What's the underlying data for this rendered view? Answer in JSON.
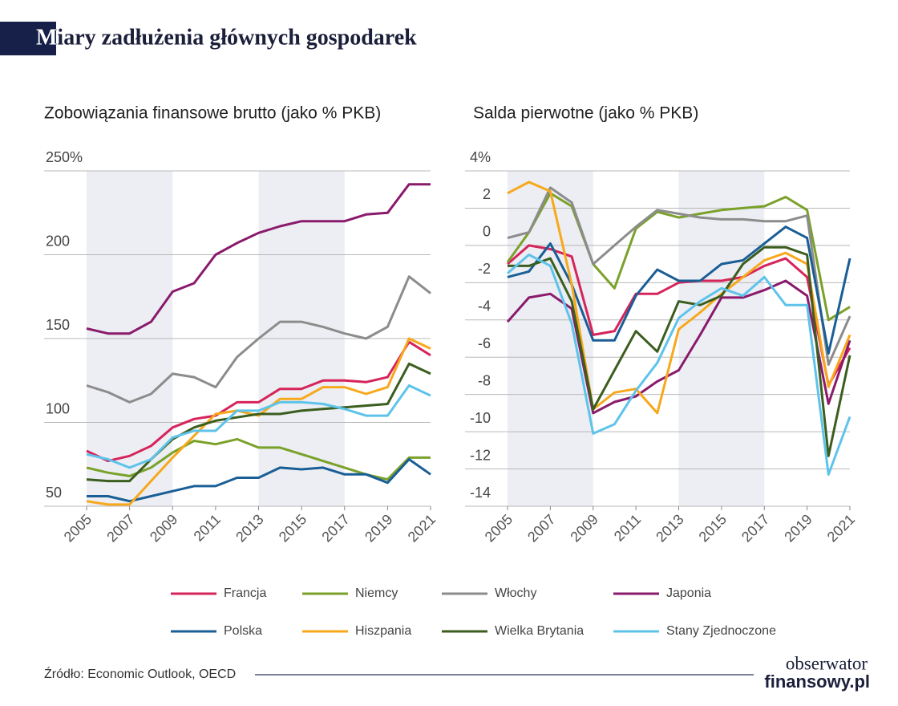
{
  "title": "Miary zadłużenia głównych gospodarek",
  "source": "Źródło: Economic Outlook, OECD",
  "logo": [
    "obserwator",
    "finansowy.pl"
  ],
  "chart_data": [
    {
      "type": "line",
      "title": "Zobowiązania finansowe brutto (jako % PKB)",
      "x": [
        2005,
        2006,
        2007,
        2008,
        2009,
        2010,
        2011,
        2012,
        2013,
        2014,
        2015,
        2016,
        2017,
        2018,
        2019,
        2020,
        2021
      ],
      "xlim": [
        2005,
        2021
      ],
      "xticks": [
        2005,
        2007,
        2009,
        2011,
        2013,
        2015,
        2017,
        2019,
        2021
      ],
      "ylim": [
        50,
        250
      ],
      "yticks": [
        50,
        100,
        150,
        200,
        {
          "value": 250,
          "label": "250%"
        }
      ],
      "grid": true,
      "shaded": [
        [
          2005,
          2009
        ],
        [
          2013,
          2017
        ]
      ],
      "series": [
        {
          "name": "Francja",
          "color": "#d6245a",
          "values": [
            83,
            77,
            80,
            86,
            97,
            102,
            104,
            112,
            112,
            120,
            120,
            125,
            125,
            124,
            127,
            148,
            140
          ]
        },
        {
          "name": "Niemcy",
          "color": "#7aa12a",
          "values": [
            73,
            70,
            68,
            73,
            82,
            89,
            87,
            90,
            85,
            85,
            81,
            77,
            73,
            69,
            66,
            79,
            79
          ]
        },
        {
          "name": "Włochy",
          "color": "#8c8c8c",
          "values": [
            122,
            118,
            112,
            117,
            129,
            127,
            121,
            139,
            150,
            160,
            160,
            157,
            153,
            150,
            157,
            187,
            177
          ]
        },
        {
          "name": "Japonia",
          "color": "#8a1a6b",
          "values": [
            156,
            153,
            153,
            160,
            178,
            183,
            200,
            207,
            213,
            217,
            220,
            220,
            220,
            224,
            225,
            242,
            242
          ]
        },
        {
          "name": "Polska",
          "color": "#1a5e96",
          "values": [
            56,
            56,
            53,
            56,
            59,
            62,
            62,
            67,
            67,
            73,
            72,
            73,
            69,
            69,
            64,
            78,
            69
          ]
        },
        {
          "name": "Hiszpania",
          "color": "#f7a81b",
          "values": [
            53,
            51,
            51,
            65,
            79,
            92,
            105,
            107,
            104,
            114,
            114,
            121,
            121,
            117,
            121,
            150,
            144
          ]
        },
        {
          "name": "Wielka Brytania",
          "color": "#3b5e1f",
          "values": [
            66,
            65,
            65,
            78,
            90,
            97,
            101,
            103,
            105,
            105,
            107,
            108,
            109,
            110,
            111,
            135,
            129
          ]
        },
        {
          "name": "Stany Zjednoczone",
          "color": "#5ec3ea",
          "values": [
            81,
            78,
            73,
            78,
            91,
            95,
            95,
            107,
            107,
            112,
            112,
            111,
            108,
            104,
            104,
            122,
            116
          ]
        }
      ]
    },
    {
      "type": "line",
      "title": "Salda pierwotne (jako % PKB)",
      "x": [
        2005,
        2006,
        2007,
        2008,
        2009,
        2010,
        2011,
        2012,
        2013,
        2014,
        2015,
        2016,
        2017,
        2018,
        2019,
        2020,
        2021
      ],
      "xlim": [
        2005,
        2021
      ],
      "xticks": [
        2005,
        2007,
        2009,
        2011,
        2013,
        2015,
        2017,
        2019,
        2021
      ],
      "ylim": [
        -14,
        4
      ],
      "yticks": [
        -14,
        -12,
        -10,
        -8,
        -6,
        -4,
        -2,
        0,
        2,
        {
          "value": 4,
          "label": "4%"
        }
      ],
      "grid": true,
      "shaded": [
        [
          2005,
          2009
        ],
        [
          2013,
          2017
        ]
      ],
      "series": [
        {
          "color": "#d6245a",
          "values": [
            -1.0,
            0.0,
            -0.2,
            -0.6,
            -4.8,
            -4.6,
            -2.6,
            -2.6,
            -2.0,
            -1.9,
            -1.9,
            -1.7,
            -1.1,
            -0.7,
            -1.7,
            -7.5,
            -5.5
          ]
        },
        {
          "color": "#7aa12a",
          "values": [
            -0.9,
            0.7,
            2.8,
            2.1,
            -1.0,
            -2.3,
            0.9,
            1.8,
            1.5,
            1.7,
            1.9,
            2.0,
            2.1,
            2.6,
            1.9,
            -4.0,
            -3.3
          ]
        },
        {
          "color": "#8c8c8c",
          "values": [
            0.4,
            0.7,
            3.1,
            2.3,
            -1.0,
            0.0,
            1.0,
            1.9,
            1.7,
            1.5,
            1.4,
            1.4,
            1.3,
            1.3,
            1.6,
            -6.4,
            -3.8
          ]
        },
        {
          "color": "#8a1a6b",
          "values": [
            -4.1,
            -2.8,
            -2.6,
            -3.4,
            -9.0,
            -8.4,
            -8.1,
            -7.3,
            -6.7,
            -4.8,
            -2.8,
            -2.8,
            -2.4,
            -1.9,
            -2.7,
            -8.5,
            -5.1
          ]
        },
        {
          "color": "#1a5e96",
          "values": [
            -1.7,
            -1.4,
            0.1,
            -2.1,
            -5.1,
            -5.1,
            -2.7,
            -1.3,
            -1.9,
            -1.9,
            -1.0,
            -0.8,
            0.1,
            1.0,
            0.4,
            -5.8,
            -0.7
          ]
        },
        {
          "color": "#f7a81b",
          "values": [
            2.8,
            3.4,
            2.9,
            -2.1,
            -8.8,
            -7.9,
            -7.7,
            -9.0,
            -4.5,
            -3.6,
            -2.6,
            -1.7,
            -0.8,
            -0.4,
            -1.0,
            -7.6,
            -4.8
          ]
        },
        {
          "color": "#3b5e1f",
          "values": [
            -1.1,
            -1.1,
            -0.7,
            -3.0,
            -8.8,
            -6.7,
            -4.6,
            -5.7,
            -3.0,
            -3.2,
            -2.7,
            -1.0,
            -0.1,
            -0.1,
            -0.5,
            -11.3,
            -5.9
          ]
        },
        {
          "color": "#5ec3ea",
          "values": [
            -1.5,
            -0.5,
            -1.1,
            -4.2,
            -10.1,
            -9.6,
            -7.8,
            -6.3,
            -3.9,
            -3.0,
            -2.3,
            -2.7,
            -1.7,
            -3.2,
            -3.2,
            -12.3,
            -9.2
          ]
        }
      ]
    }
  ]
}
